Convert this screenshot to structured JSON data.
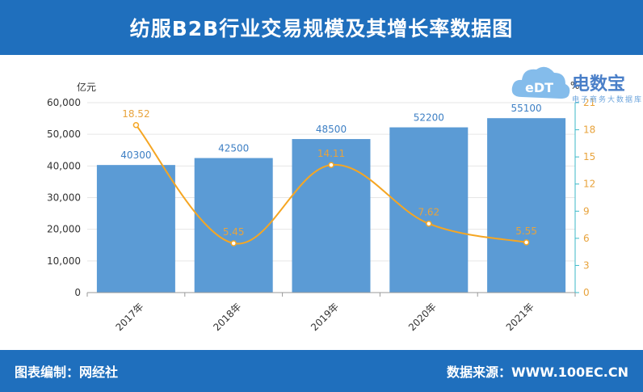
{
  "header": {
    "title": "纺服B2B行业交易规模及其增长率数据图"
  },
  "footer": {
    "left": "图表编制：网经社",
    "right": "数据来源：WWW.100EC.CN"
  },
  "logo": {
    "main": "电数宝",
    "sub": "电子商务大数据库",
    "mark": "eDT"
  },
  "colors": {
    "header": "#1f6fbd",
    "bar": "#5b9bd5",
    "line": "#f5a623",
    "axis_right": "#3cb9c9"
  },
  "chart_data": {
    "type": "bar",
    "categories": [
      "2017年",
      "2018年",
      "2019年",
      "2020年",
      "2021年"
    ],
    "series": [
      {
        "values": [
          40300,
          42500,
          48500,
          52200,
          55100
        ],
        "axis": "left",
        "kind": "bar"
      },
      {
        "values": [
          18.52,
          5.45,
          14.11,
          7.62,
          5.55
        ],
        "axis": "right",
        "kind": "line"
      }
    ],
    "ylabel": "亿元",
    "ylabel_right": "%",
    "ylim": [
      0,
      60000
    ],
    "yticks": [
      "0",
      "10,000",
      "20,000",
      "30,000",
      "40,000",
      "50,000",
      "60,000"
    ],
    "ylim_right": [
      0,
      21
    ],
    "yticks_right": [
      "0",
      "3",
      "6",
      "9",
      "12",
      "15",
      "18",
      "21"
    ],
    "bar_labels": [
      "40300",
      "42500",
      "48500",
      "52200",
      "55100"
    ],
    "line_labels": [
      "18.52",
      "5.45",
      "14.11",
      "7.62",
      "5.55"
    ],
    "grid": true
  }
}
